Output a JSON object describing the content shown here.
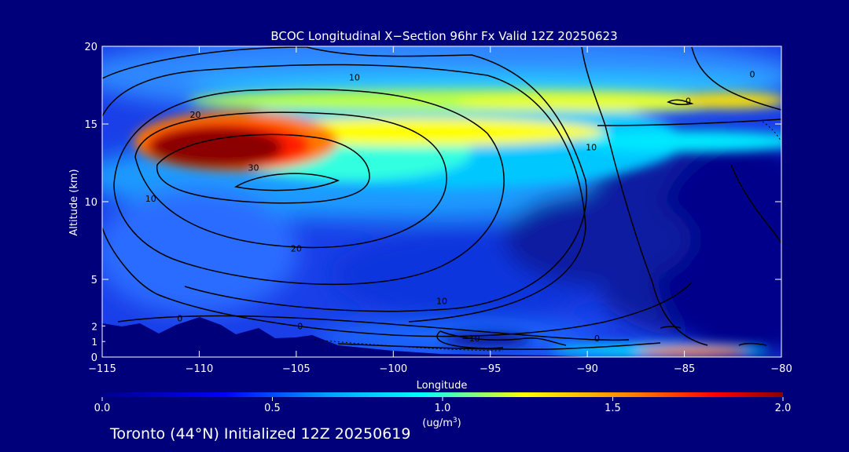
{
  "footer": "Toronto (44°N) Initialized 12Z 20250619",
  "chart_data": {
    "type": "heatmap",
    "title": "BCOC Longitudinal X−Section 96hr  Fx Valid 12Z 20250623",
    "xlabel": "Longitude",
    "ylabel": "Altitude (km)",
    "xlim": [
      -115,
      -80
    ],
    "ylim": [
      0,
      20
    ],
    "x_ticks": [
      -115,
      -110,
      -105,
      -100,
      -95,
      -90,
      -85,
      -80
    ],
    "x_tick_labels": [
      "−115",
      "−110",
      "−105",
      "−100",
      "−95",
      "−90",
      "−85",
      "−80"
    ],
    "y_ticks": [
      0,
      5,
      10,
      15,
      20
    ],
    "y_tick_labels": [
      "0",
      "5",
      "10",
      "15",
      "20"
    ],
    "colorbar": {
      "min": 0.0,
      "max": 2.0,
      "ticks": [
        0.0,
        0.5,
        1.0,
        1.5,
        2.0
      ],
      "tick_labels": [
        "0.0",
        "0.5",
        "1.0",
        "1.5",
        "2.0"
      ],
      "units_label": "(ug/m",
      "units_superscript": "3",
      "units_close": ")",
      "colors": [
        "#00008b",
        "#0000ff",
        "#00a0ff",
        "#00ffff",
        "#ffff00",
        "#ff8000",
        "#ff0000",
        "#8b0000"
      ]
    },
    "heatmap_features": [
      {
        "description": "plume core",
        "lon": -108.5,
        "alt": 13.0,
        "value": 2.0
      },
      {
        "description": "upper layer",
        "lon": -96,
        "alt": 16.5,
        "value": 0.95
      },
      {
        "description": "upper layer east",
        "lon": -83,
        "alt": 14.8,
        "value": 0.8
      },
      {
        "description": "surface band",
        "lon": -85.5,
        "alt": 0.3,
        "value": 1.7
      }
    ],
    "contour_labels": [
      {
        "text": "10",
        "lon": -112.5,
        "alt": 10.2
      },
      {
        "text": "20",
        "lon": -110.2,
        "alt": 15.6
      },
      {
        "text": "30",
        "lon": -107.2,
        "alt": 12.2
      },
      {
        "text": "10",
        "lon": -102.0,
        "alt": 18.0
      },
      {
        "text": "20",
        "lon": -105.0,
        "alt": 7.0
      },
      {
        "text": "10",
        "lon": -97.5,
        "alt": 3.6
      },
      {
        "text": "−10",
        "lon": -96.0,
        "alt": 1.2
      },
      {
        "text": "10",
        "lon": -89.8,
        "alt": 13.5
      },
      {
        "text": "0",
        "lon": -111.0,
        "alt": 2.5
      },
      {
        "text": "0",
        "lon": -104.8,
        "alt": 2.0
      },
      {
        "text": "0",
        "lon": -89.5,
        "alt": 1.2
      },
      {
        "text": "0",
        "lon": -84.8,
        "alt": 16.5
      },
      {
        "text": "0",
        "lon": -81.5,
        "alt": 18.2
      }
    ]
  }
}
